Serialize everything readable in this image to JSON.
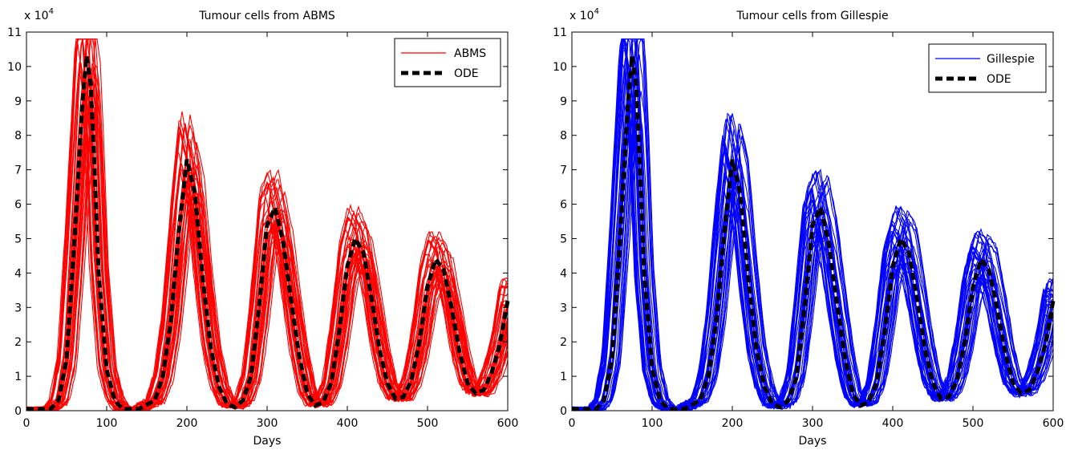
{
  "chart_data": [
    {
      "type": "line",
      "title": "Tumour cells from ABMS",
      "xlabel": "Days",
      "ylabel": "",
      "y_multiplier": "x 10",
      "y_multiplier_exp": "4",
      "xlim": [
        0,
        600
      ],
      "ylim": [
        0,
        11
      ],
      "xticks": [
        0,
        100,
        200,
        300,
        400,
        500,
        600
      ],
      "yticks": [
        0,
        1,
        2,
        3,
        4,
        5,
        6,
        7,
        8,
        9,
        10,
        11
      ],
      "grid": false,
      "legend_position": "top-right",
      "legend": [
        {
          "label": "ABMS",
          "color": "#ff0000",
          "style": "solid"
        },
        {
          "label": "ODE",
          "color": "#000000",
          "style": "dashed"
        }
      ],
      "ode": {
        "x": [
          0,
          30,
          40,
          50,
          60,
          70,
          75,
          80,
          85,
          90,
          100,
          110,
          120,
          140,
          160,
          170,
          180,
          190,
          200,
          210,
          220,
          230,
          240,
          250,
          260,
          270,
          280,
          290,
          300,
          310,
          320,
          330,
          340,
          350,
          360,
          370,
          380,
          390,
          400,
          410,
          420,
          430,
          440,
          450,
          460,
          470,
          480,
          490,
          500,
          510,
          520,
          530,
          540,
          550,
          560,
          570,
          580,
          590,
          600
        ],
        "y": [
          0.05,
          0.05,
          0.3,
          1.5,
          5.0,
          9.0,
          10.3,
          9.5,
          7.0,
          4.0,
          1.2,
          0.3,
          0.05,
          0.05,
          0.3,
          1.0,
          2.6,
          5.2,
          7.3,
          6.3,
          3.8,
          1.8,
          0.7,
          0.2,
          0.1,
          0.3,
          1.0,
          3.0,
          5.4,
          5.9,
          4.9,
          3.2,
          1.6,
          0.5,
          0.15,
          0.25,
          0.8,
          2.3,
          4.2,
          5.0,
          4.6,
          3.3,
          1.8,
          0.8,
          0.35,
          0.4,
          0.9,
          2.0,
          3.6,
          4.4,
          4.1,
          3.0,
          1.7,
          0.8,
          0.5,
          0.6,
          1.1,
          1.9,
          3.2
        ]
      },
      "series_color": "#ff0000"
    },
    {
      "type": "line",
      "title": "Tumour cells from Gillespie",
      "xlabel": "Days",
      "ylabel": "",
      "y_multiplier": "x 10",
      "y_multiplier_exp": "4",
      "xlim": [
        0,
        600
      ],
      "ylim": [
        0,
        11
      ],
      "xticks": [
        0,
        100,
        200,
        300,
        400,
        500,
        600
      ],
      "yticks": [
        0,
        1,
        2,
        3,
        4,
        5,
        6,
        7,
        8,
        9,
        10,
        11
      ],
      "grid": false,
      "legend_position": "top-right",
      "legend": [
        {
          "label": "Gillespie",
          "color": "#0000ff",
          "style": "solid"
        },
        {
          "label": "ODE",
          "color": "#000000",
          "style": "dashed"
        }
      ],
      "ode": {
        "x": [
          0,
          30,
          40,
          50,
          60,
          70,
          75,
          80,
          85,
          90,
          100,
          110,
          120,
          140,
          160,
          170,
          180,
          190,
          200,
          210,
          220,
          230,
          240,
          250,
          260,
          270,
          280,
          290,
          300,
          310,
          320,
          330,
          340,
          350,
          360,
          370,
          380,
          390,
          400,
          410,
          420,
          430,
          440,
          450,
          460,
          470,
          480,
          490,
          500,
          510,
          520,
          530,
          540,
          550,
          560,
          570,
          580,
          590,
          600
        ],
        "y": [
          0.05,
          0.05,
          0.3,
          1.5,
          5.0,
          9.0,
          10.3,
          9.5,
          7.0,
          4.0,
          1.2,
          0.3,
          0.05,
          0.05,
          0.3,
          1.0,
          2.6,
          5.2,
          7.3,
          6.3,
          3.8,
          1.8,
          0.7,
          0.2,
          0.1,
          0.3,
          1.0,
          3.0,
          5.4,
          5.9,
          4.9,
          3.2,
          1.6,
          0.5,
          0.15,
          0.25,
          0.8,
          2.3,
          4.2,
          5.0,
          4.6,
          3.3,
          1.8,
          0.8,
          0.35,
          0.4,
          0.9,
          2.0,
          3.6,
          4.4,
          4.1,
          3.0,
          1.7,
          0.8,
          0.5,
          0.6,
          1.1,
          1.9,
          3.2
        ]
      },
      "series_color": "#0000ff"
    }
  ]
}
